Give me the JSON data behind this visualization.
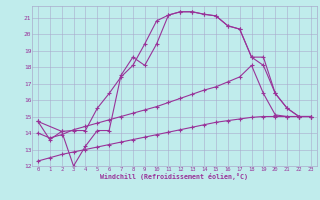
{
  "xlabel": "Windchill (Refroidissement éolien,°C)",
  "background_color": "#c0ecec",
  "grid_color": "#aaaacc",
  "line_color": "#993399",
  "xlim": [
    -0.5,
    23.5
  ],
  "ylim": [
    12,
    21.7
  ],
  "yticks": [
    12,
    13,
    14,
    15,
    16,
    17,
    18,
    19,
    20,
    21
  ],
  "xticks": [
    0,
    1,
    2,
    3,
    4,
    5,
    6,
    7,
    8,
    9,
    10,
    11,
    12,
    13,
    14,
    15,
    16,
    17,
    18,
    19,
    20,
    21,
    22,
    23
  ],
  "curve1_x": [
    0,
    1,
    2,
    3,
    4,
    5,
    6,
    7,
    8,
    9,
    10,
    11,
    12,
    13,
    14,
    15,
    16,
    17,
    18,
    19,
    20,
    21,
    22,
    23
  ],
  "curve1_y": [
    14.7,
    13.6,
    14.1,
    14.15,
    14.15,
    15.5,
    16.4,
    17.4,
    18.1,
    19.4,
    20.8,
    21.15,
    21.35,
    21.35,
    21.2,
    21.1,
    20.5,
    20.3,
    18.6,
    18.6,
    16.4,
    15.5,
    15.0,
    15.0
  ],
  "curve2_x": [
    0,
    2,
    3,
    4,
    5,
    6,
    7,
    8,
    9,
    10,
    11,
    12,
    13,
    14,
    15,
    16,
    17,
    18,
    19,
    20,
    21,
    22,
    23
  ],
  "curve2_y": [
    14.7,
    14.1,
    12.0,
    13.2,
    14.15,
    14.15,
    17.5,
    18.6,
    18.1,
    19.4,
    21.15,
    21.35,
    21.35,
    21.2,
    21.1,
    20.5,
    20.3,
    18.6,
    18.1,
    16.4,
    15.5,
    15.0,
    15.0
  ],
  "curve3_x": [
    0,
    1,
    2,
    3,
    4,
    5,
    6,
    7,
    8,
    9,
    10,
    11,
    12,
    13,
    14,
    15,
    16,
    17,
    18,
    19,
    20,
    21,
    22,
    23
  ],
  "curve3_y": [
    14.0,
    13.7,
    13.9,
    14.2,
    14.4,
    14.6,
    14.8,
    15.0,
    15.2,
    15.4,
    15.6,
    15.85,
    16.1,
    16.35,
    16.6,
    16.8,
    17.1,
    17.4,
    18.1,
    16.4,
    15.1,
    15.0,
    15.0,
    15.0
  ],
  "curve4_x": [
    0,
    1,
    2,
    3,
    4,
    5,
    6,
    7,
    8,
    9,
    10,
    11,
    12,
    13,
    14,
    15,
    16,
    17,
    18,
    19,
    20,
    21,
    22,
    23
  ],
  "curve4_y": [
    12.3,
    12.5,
    12.7,
    12.85,
    13.0,
    13.15,
    13.3,
    13.45,
    13.6,
    13.75,
    13.9,
    14.05,
    14.2,
    14.35,
    14.5,
    14.65,
    14.75,
    14.85,
    14.95,
    15.0,
    15.0,
    15.0,
    15.0,
    15.0
  ]
}
